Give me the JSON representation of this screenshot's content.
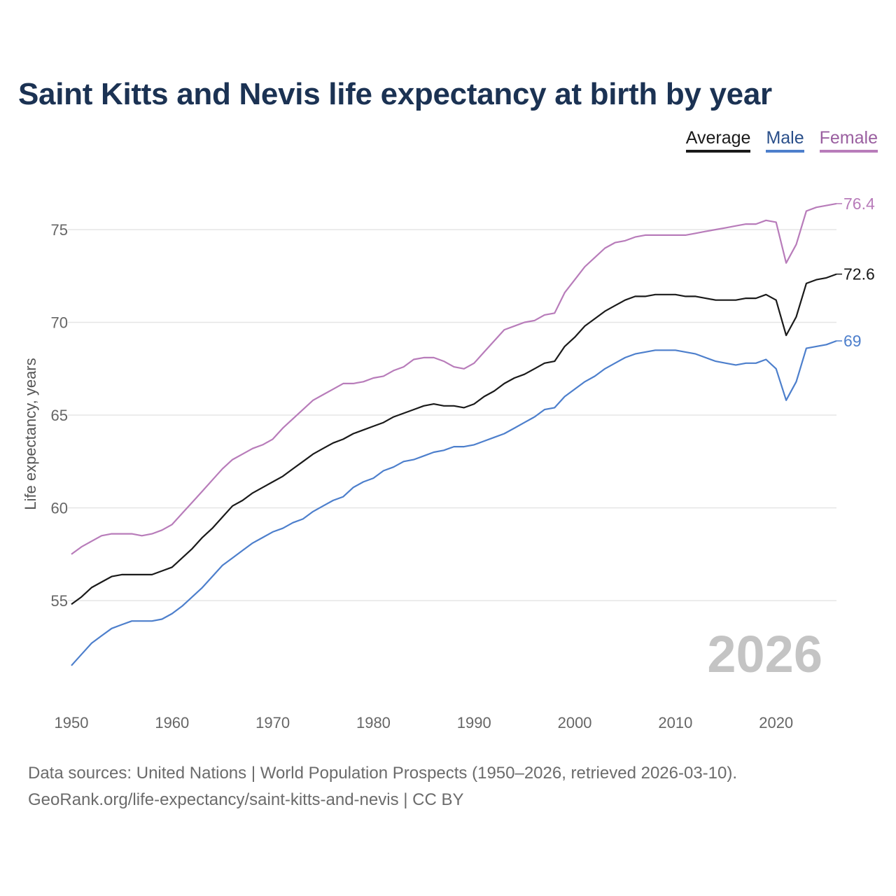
{
  "chart_data": {
    "type": "line",
    "title": "Saint Kitts and Nevis life expectancy at birth by year",
    "xlabel": "",
    "ylabel": "Life expectancy, years",
    "xlim": [
      1950,
      2026
    ],
    "ylim": [
      50.5,
      77
    ],
    "x_ticks": [
      1950,
      1960,
      1970,
      1980,
      1990,
      2000,
      2010,
      2020
    ],
    "y_ticks": [
      55,
      60,
      65,
      70,
      75
    ],
    "grid": true,
    "legend_placement": "top-right",
    "watermark_year": "2026",
    "x": [
      1950,
      1951,
      1952,
      1953,
      1954,
      1955,
      1956,
      1957,
      1958,
      1959,
      1960,
      1961,
      1962,
      1963,
      1964,
      1965,
      1966,
      1967,
      1968,
      1969,
      1970,
      1971,
      1972,
      1973,
      1974,
      1975,
      1976,
      1977,
      1978,
      1979,
      1980,
      1981,
      1982,
      1983,
      1984,
      1985,
      1986,
      1987,
      1988,
      1989,
      1990,
      1991,
      1992,
      1993,
      1994,
      1995,
      1996,
      1997,
      1998,
      1999,
      2000,
      2001,
      2002,
      2003,
      2004,
      2005,
      2006,
      2007,
      2008,
      2009,
      2010,
      2011,
      2012,
      2013,
      2014,
      2015,
      2016,
      2017,
      2018,
      2019,
      2020,
      2021,
      2022,
      2023,
      2024,
      2025,
      2026
    ],
    "series": [
      {
        "name": "Average",
        "color": "#1a1a1a",
        "end_label": "72.6",
        "values": [
          54.8,
          55.2,
          55.7,
          56.0,
          56.3,
          56.4,
          56.4,
          56.4,
          56.4,
          56.6,
          56.8,
          57.3,
          57.8,
          58.4,
          58.9,
          59.5,
          60.1,
          60.4,
          60.8,
          61.1,
          61.4,
          61.7,
          62.1,
          62.5,
          62.9,
          63.2,
          63.5,
          63.7,
          64.0,
          64.2,
          64.4,
          64.6,
          64.9,
          65.1,
          65.3,
          65.5,
          65.6,
          65.5,
          65.5,
          65.4,
          65.6,
          66.0,
          66.3,
          66.7,
          67.0,
          67.2,
          67.5,
          67.8,
          67.9,
          68.7,
          69.2,
          69.8,
          70.2,
          70.6,
          70.9,
          71.2,
          71.4,
          71.4,
          71.5,
          71.5,
          71.5,
          71.4,
          71.4,
          71.3,
          71.2,
          71.2,
          71.2,
          71.3,
          71.3,
          71.5,
          71.2,
          69.3,
          70.3,
          72.1,
          72.3,
          72.4,
          72.6
        ]
      },
      {
        "name": "Male",
        "color": "#4d7fcc",
        "end_label": "69",
        "values": [
          51.5,
          52.1,
          52.7,
          53.1,
          53.5,
          53.7,
          53.9,
          53.9,
          53.9,
          54.0,
          54.3,
          54.7,
          55.2,
          55.7,
          56.3,
          56.9,
          57.3,
          57.7,
          58.1,
          58.4,
          58.7,
          58.9,
          59.2,
          59.4,
          59.8,
          60.1,
          60.4,
          60.6,
          61.1,
          61.4,
          61.6,
          62.0,
          62.2,
          62.5,
          62.6,
          62.8,
          63.0,
          63.1,
          63.3,
          63.3,
          63.4,
          63.6,
          63.8,
          64.0,
          64.3,
          64.6,
          64.9,
          65.3,
          65.4,
          66.0,
          66.4,
          66.8,
          67.1,
          67.5,
          67.8,
          68.1,
          68.3,
          68.4,
          68.5,
          68.5,
          68.5,
          68.4,
          68.3,
          68.1,
          67.9,
          67.8,
          67.7,
          67.8,
          67.8,
          68.0,
          67.5,
          65.8,
          66.8,
          68.6,
          68.7,
          68.8,
          69.0
        ]
      },
      {
        "name": "Female",
        "color": "#b87cba",
        "end_label": "76.4",
        "values": [
          57.5,
          57.9,
          58.2,
          58.5,
          58.6,
          58.6,
          58.6,
          58.5,
          58.6,
          58.8,
          59.1,
          59.7,
          60.3,
          60.9,
          61.5,
          62.1,
          62.6,
          62.9,
          63.2,
          63.4,
          63.7,
          64.3,
          64.8,
          65.3,
          65.8,
          66.1,
          66.4,
          66.7,
          66.7,
          66.8,
          67.0,
          67.1,
          67.4,
          67.6,
          68.0,
          68.1,
          68.1,
          67.9,
          67.6,
          67.5,
          67.8,
          68.4,
          69.0,
          69.6,
          69.8,
          70.0,
          70.1,
          70.4,
          70.5,
          71.6,
          72.3,
          73.0,
          73.5,
          74.0,
          74.3,
          74.4,
          74.6,
          74.7,
          74.7,
          74.7,
          74.7,
          74.7,
          74.8,
          74.9,
          75.0,
          75.1,
          75.2,
          75.3,
          75.3,
          75.5,
          75.4,
          73.2,
          74.2,
          76.0,
          76.2,
          76.3,
          76.4
        ]
      }
    ]
  },
  "footer": {
    "line1": "Data sources: United Nations | World Population Prospects (1950–2026, retrieved 2026-03-10).",
    "line2": "GeoRank.org/life-expectancy/saint-kitts-and-nevis | CC BY"
  }
}
